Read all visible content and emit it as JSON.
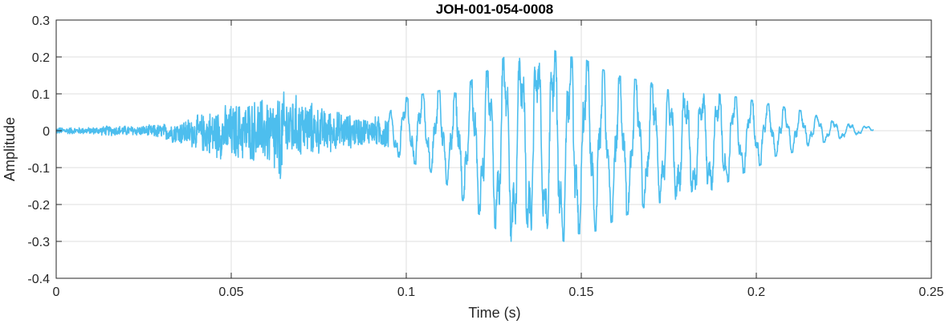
{
  "chart_data": {
    "type": "line",
    "title": "JOH-001-054-0008",
    "xlabel": "Time (s)",
    "ylabel": "Amplitude",
    "xlim": [
      0,
      0.25
    ],
    "ylim": [
      -0.4,
      0.3
    ],
    "grid": true,
    "legend": "none",
    "x_ticks": [
      0,
      0.05,
      0.1,
      0.15,
      0.2,
      0.25
    ],
    "x_tick_labels": [
      "0",
      "0.05",
      "0.1",
      "0.15",
      "0.2",
      "0.25"
    ],
    "y_ticks": [
      -0.4,
      -0.3,
      -0.2,
      -0.1,
      0,
      0.1,
      0.2,
      0.3
    ],
    "y_tick_labels": [
      "-0.4",
      "-0.3",
      "-0.2",
      "-0.1",
      "0",
      "0.1",
      "0.2",
      "0.3"
    ],
    "colors": {
      "line": "#4DBEEE",
      "grid": "#dfdfdf",
      "axes": "#262626"
    },
    "series": [
      {
        "x": [
          0,
          0.005,
          0.01,
          0.015,
          0.02,
          0.025,
          0.03,
          0.035,
          0.04,
          0.045,
          0.05,
          0.055,
          0.06,
          0.064,
          0.065,
          0.07,
          0.075,
          0.08,
          0.085,
          0.09,
          0.095,
          0.1,
          0.105,
          0.11,
          0.115,
          0.12,
          0.125,
          0.128,
          0.13,
          0.132,
          0.135,
          0.14,
          0.142,
          0.145,
          0.15,
          0.155,
          0.16,
          0.165,
          0.17,
          0.175,
          0.18,
          0.185,
          0.19,
          0.195,
          0.2,
          0.205,
          0.21,
          0.215,
          0.22,
          0.225,
          0.2335
        ],
        "envelope_max": [
          0.01,
          0.01,
          0.01,
          0.015,
          0.015,
          0.015,
          0.02,
          0.03,
          0.045,
          0.065,
          0.08,
          0.09,
          0.1,
          0.11,
          0.115,
          0.1,
          0.07,
          0.06,
          0.045,
          0.04,
          0.05,
          0.09,
          0.1,
          0.11,
          0.1,
          0.15,
          0.17,
          0.2,
          0.22,
          0.2,
          0.21,
          0.21,
          0.22,
          0.2,
          0.2,
          0.17,
          0.15,
          0.14,
          0.13,
          0.11,
          0.1,
          0.1,
          0.1,
          0.09,
          0.08,
          0.07,
          0.06,
          0.05,
          0.03,
          0.02,
          0.01
        ],
        "envelope_min": [
          -0.01,
          -0.01,
          -0.01,
          -0.015,
          -0.015,
          -0.015,
          -0.025,
          -0.04,
          -0.055,
          -0.08,
          -0.09,
          -0.09,
          -0.1,
          -0.18,
          -0.1,
          -0.08,
          -0.07,
          -0.06,
          -0.05,
          -0.04,
          -0.06,
          -0.08,
          -0.1,
          -0.13,
          -0.18,
          -0.22,
          -0.26,
          -0.29,
          -0.3,
          -0.31,
          -0.29,
          -0.28,
          -0.28,
          -0.3,
          -0.28,
          -0.27,
          -0.24,
          -0.22,
          -0.2,
          -0.19,
          -0.18,
          -0.17,
          -0.15,
          -0.12,
          -0.1,
          -0.07,
          -0.06,
          -0.04,
          -0.03,
          -0.02,
          0.0
        ]
      }
    ]
  }
}
